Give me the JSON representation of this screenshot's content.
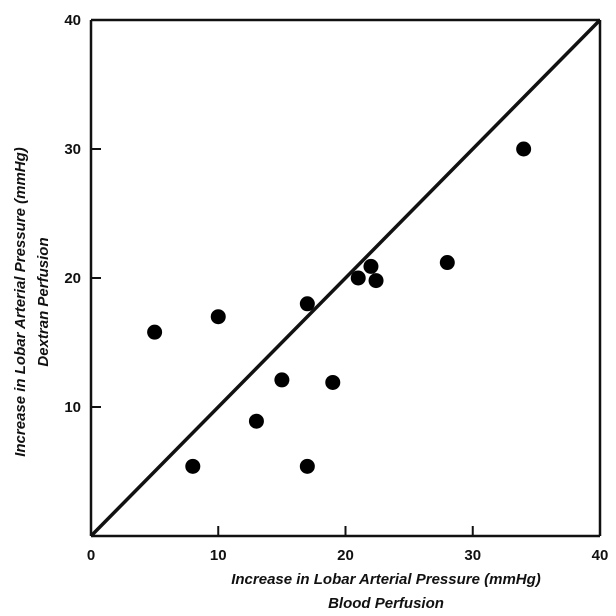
{
  "chart_data": {
    "type": "scatter",
    "title": "",
    "xlabel": "Increase in Lobar Arterial Pressure (mmHg)",
    "xlabel_sub": "Blood Perfusion",
    "ylabel": "Increase in Lobar Arterial Pressure (mmHg)",
    "ylabel_sub": "Dextran Perfusion",
    "xlim": [
      0,
      40
    ],
    "ylim": [
      0,
      40
    ],
    "xticks": [
      "0",
      "10",
      "20",
      "30",
      "40"
    ],
    "yticks": [
      "10",
      "20",
      "30",
      "40"
    ],
    "grid": false,
    "reference_line": {
      "type": "identity",
      "from": [
        0,
        0
      ],
      "to": [
        40,
        40
      ]
    },
    "points": [
      {
        "x": 5.0,
        "y": 15.8
      },
      {
        "x": 8.0,
        "y": 5.4
      },
      {
        "x": 10.0,
        "y": 17.0
      },
      {
        "x": 13.0,
        "y": 8.9
      },
      {
        "x": 15.0,
        "y": 12.1
      },
      {
        "x": 17.0,
        "y": 18.0
      },
      {
        "x": 17.0,
        "y": 5.4
      },
      {
        "x": 19.0,
        "y": 11.9
      },
      {
        "x": 21.0,
        "y": 20.0
      },
      {
        "x": 22.0,
        "y": 20.9
      },
      {
        "x": 22.4,
        "y": 19.8
      },
      {
        "x": 28.0,
        "y": 21.2
      },
      {
        "x": 34.0,
        "y": 30.0
      }
    ],
    "marker_color": "#000000"
  }
}
